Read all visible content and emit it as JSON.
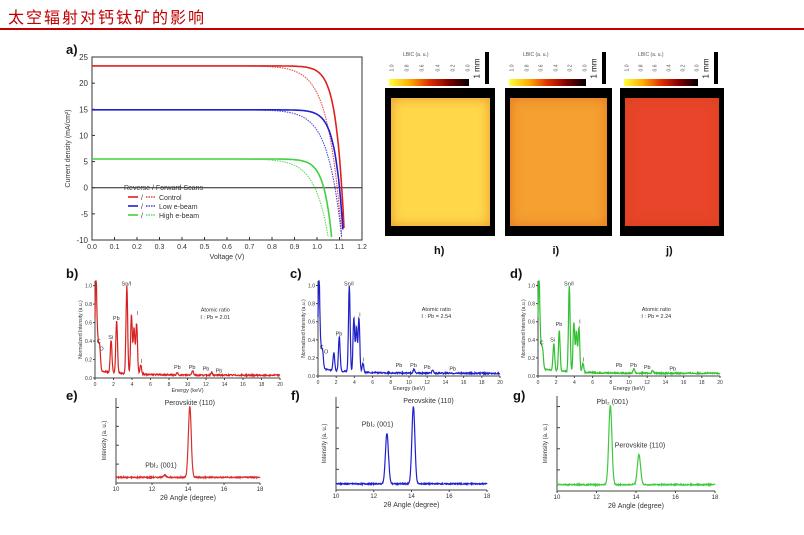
{
  "header": {
    "title": "太空辐射对钙钛矿的影响",
    "accent": "#c00000"
  },
  "panel_labels": {
    "a": "a)",
    "b": "b)",
    "c": "c)",
    "d": "d)",
    "e": "e)",
    "f": "f)",
    "g": "g)",
    "h": "h)",
    "i": "i)",
    "j": "j)"
  },
  "lbic": {
    "colorbar_title": "LBIC (a. u.)",
    "ticks": [
      "1.0",
      "0.8",
      "0.6",
      "0.4",
      "0.2",
      "0.0"
    ],
    "scale_label": "1 mm",
    "colors": {
      "h": "#ffd84a",
      "i": "#f5a030",
      "j": "#e8452a"
    }
  },
  "chart_data": [
    {
      "id": "a",
      "type": "line",
      "xlabel": "Voltage (V)",
      "ylabel": "Current density (mA/cm²)",
      "xlim": [
        0,
        1.2
      ],
      "ylim": [
        -10,
        25
      ],
      "xticks": [
        "0.0",
        "0.1",
        "0.2",
        "0.3",
        "0.4",
        "0.5",
        "0.6",
        "0.7",
        "0.8",
        "0.9",
        "1.0",
        "1.1",
        "1.2"
      ],
      "yticks": [
        "25",
        "20",
        "15",
        "10",
        "5",
        "0",
        "-5",
        "-10"
      ],
      "legend_title": "Reverse / Forward Scans",
      "legend_sep": "/",
      "series": [
        {
          "name": "Control",
          "color": "#e02020",
          "jsc": 23.3,
          "voc_reverse": 1.11,
          "voc_forward": 1.09
        },
        {
          "name": "Low e-beam",
          "color": "#2020d0",
          "jsc": 14.9,
          "voc_reverse": 1.1,
          "voc_forward": 1.08
        },
        {
          "name": "High e-beam",
          "color": "#40d040",
          "jsc": 5.5,
          "voc_reverse": 1.03,
          "voc_forward": 0.99
        }
      ]
    },
    {
      "id": "b",
      "type": "line",
      "color": "#d82020",
      "xlabel": "Energy (keV)",
      "ylabel": "Normalized Intensity (a.u.)",
      "xlim": [
        0,
        20
      ],
      "ylim": [
        0,
        1.05
      ],
      "note1": "Atomic ratio",
      "note2": "I : Pb = 2.01",
      "peaks": [
        [
          0.1,
          1.05
        ],
        [
          0.3,
          0.28
        ],
        [
          0.5,
          0.27
        ],
        [
          1.74,
          0.35
        ],
        [
          2.34,
          0.57
        ],
        [
          3.44,
          0.95
        ],
        [
          3.94,
          0.64
        ],
        [
          4.22,
          0.5
        ],
        [
          4.5,
          0.55
        ],
        [
          4.94,
          0.1
        ],
        [
          10.55,
          0.05
        ],
        [
          12.6,
          0.03
        ],
        [
          8.9,
          0.02
        ]
      ],
      "labels": [
        [
          "C",
          0.4,
          0.38
        ],
        [
          "O",
          0.7,
          0.3
        ],
        [
          "Si",
          1.7,
          0.42
        ],
        [
          "Pb",
          2.3,
          0.63
        ],
        [
          "Sn/I",
          3.4,
          1.0
        ],
        [
          "I",
          4.6,
          0.68
        ],
        [
          "I",
          5.0,
          0.16
        ],
        [
          "Pb",
          8.9,
          0.1
        ],
        [
          "Pb",
          10.5,
          0.1
        ],
        [
          "Pb",
          12.0,
          0.08
        ],
        [
          "Pb",
          13.4,
          0.06
        ]
      ]
    },
    {
      "id": "c",
      "type": "line",
      "color": "#2020c8",
      "xlabel": "Energy (keV)",
      "ylabel": "Normalized Intensity (a.u.)",
      "xlim": [
        0,
        20
      ],
      "ylim": [
        0,
        1.05
      ],
      "note1": "Atomic ratio",
      "note2": "I : Pb = 2.54",
      "peaks": [
        [
          0.1,
          1.05
        ],
        [
          0.3,
          0.22
        ],
        [
          0.5,
          0.2
        ],
        [
          1.74,
          0.2
        ],
        [
          2.34,
          0.38
        ],
        [
          3.44,
          0.95
        ],
        [
          3.94,
          0.6
        ],
        [
          4.22,
          0.5
        ],
        [
          4.5,
          0.6
        ],
        [
          4.94,
          0.1
        ],
        [
          10.55,
          0.04
        ],
        [
          12.6,
          0.03
        ]
      ],
      "labels": [
        [
          "C",
          0.4,
          0.3
        ],
        [
          "O",
          0.9,
          0.25
        ],
        [
          "Pb",
          2.3,
          0.45
        ],
        [
          "Sn/I",
          3.4,
          1.0
        ],
        [
          "I",
          4.6,
          0.66
        ],
        [
          "I",
          5.0,
          0.16
        ],
        [
          "Pb",
          8.9,
          0.1
        ],
        [
          "Pb",
          10.5,
          0.1
        ],
        [
          "Pb",
          12.0,
          0.08
        ],
        [
          "Pb",
          14.8,
          0.06
        ]
      ]
    },
    {
      "id": "d",
      "type": "line",
      "color": "#30c030",
      "xlabel": "Energy (keV)",
      "ylabel": "Normalized Intensity (a.u.)",
      "xlim": [
        0,
        20
      ],
      "ylim": [
        0,
        1.05
      ],
      "note1": "Atomic ratio",
      "note2": "I : Pb = 2.24",
      "peaks": [
        [
          0.1,
          1.05
        ],
        [
          0.3,
          0.25
        ],
        [
          0.5,
          0.22
        ],
        [
          1.74,
          0.3
        ],
        [
          2.34,
          0.45
        ],
        [
          3.44,
          0.95
        ],
        [
          3.94,
          0.55
        ],
        [
          4.22,
          0.45
        ],
        [
          4.5,
          0.5
        ],
        [
          4.94,
          0.1
        ],
        [
          10.55,
          0.05
        ],
        [
          12.6,
          0.03
        ]
      ],
      "labels": [
        [
          "C",
          0.4,
          0.35
        ],
        [
          "Si",
          1.6,
          0.38
        ],
        [
          "Pb",
          2.3,
          0.55
        ],
        [
          "Sn/I",
          3.4,
          1.0
        ],
        [
          "I",
          4.6,
          0.58
        ],
        [
          "I",
          5.0,
          0.16
        ],
        [
          "Pb",
          8.9,
          0.1
        ],
        [
          "Pb",
          10.5,
          0.1
        ],
        [
          "Pb",
          12.0,
          0.08
        ],
        [
          "Pb",
          14.8,
          0.06
        ]
      ]
    },
    {
      "id": "e",
      "type": "line",
      "color": "#d83030",
      "xlabel": "2θ Angle (degree)",
      "ylabel": "Intensity (a. u.)",
      "xlim": [
        10,
        18
      ],
      "ylim": [
        0,
        1.2
      ],
      "peaks": [
        [
          12.7,
          0.03
        ],
        [
          14.1,
          1.0
        ]
      ],
      "labels": [
        [
          "PbI₂ (001)",
          12.5,
          0.22
        ],
        [
          "Perovskite (110)",
          14.1,
          1.1
        ]
      ]
    },
    {
      "id": "f",
      "type": "line",
      "color": "#2020d0",
      "xlabel": "2θ Angle (degree)",
      "ylabel": "Intensity (a. u.)",
      "xlim": [
        10,
        18
      ],
      "ylim": [
        0,
        1.2
      ],
      "peaks": [
        [
          12.7,
          0.65
        ],
        [
          14.1,
          1.0
        ]
      ],
      "labels": [
        [
          "PbI₂ (001)",
          12.2,
          0.82
        ],
        [
          "Perovskite (110)",
          14.9,
          1.12
        ]
      ]
    },
    {
      "id": "g",
      "type": "line",
      "color": "#40c840",
      "xlabel": "2θ Angle (degree)",
      "ylabel": "Intensity (a. u.)",
      "xlim": [
        10,
        18
      ],
      "ylim": [
        0,
        1.2
      ],
      "peaks": [
        [
          12.7,
          1.0
        ],
        [
          14.15,
          0.38
        ]
      ],
      "labels": [
        [
          "PbI₂ (001)",
          12.8,
          1.1
        ],
        [
          "Perovskite (110)",
          14.2,
          0.55
        ]
      ]
    }
  ],
  "xtick_sets": {
    "eds": [
      "0",
      "2",
      "4",
      "6",
      "8",
      "10",
      "12",
      "14",
      "16",
      "18",
      "20"
    ],
    "eds_y": [
      "0.0",
      "0.2",
      "0.4",
      "0.6",
      "0.8",
      "1.0"
    ],
    "xrd": [
      "10",
      "12",
      "14",
      "16",
      "18"
    ]
  }
}
